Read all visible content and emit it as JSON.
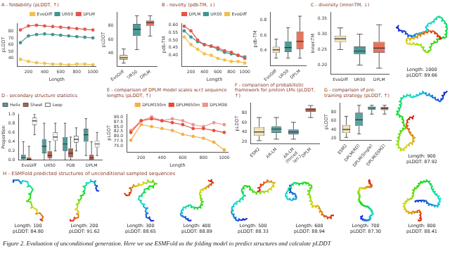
{
  "chart_data": [
    {
      "type": "line",
      "title": "A - foldability (pLDDT, ↑)",
      "xlabel": "Length",
      "ylabel": "pLDDT",
      "x": [
        100,
        200,
        300,
        400,
        500,
        600,
        700,
        800,
        900,
        1000
      ],
      "xlim": [
        60,
        1040
      ],
      "xticks": [
        200,
        400,
        600,
        800,
        1000
      ],
      "ylim": [
        28,
        92
      ],
      "yticks": [
        40,
        50,
        60,
        70,
        80
      ],
      "grid": false,
      "legend": "upper right",
      "series": [
        {
          "name": "EvoDiff",
          "color": "#f2c14e",
          "marker": "circle",
          "values": [
            38,
            35,
            33,
            32,
            31,
            31,
            30,
            31,
            31,
            30
          ]
        },
        {
          "name": "UR50",
          "color": "#3e9690",
          "marker": "circle",
          "values": [
            63,
            73,
            75,
            76,
            75,
            74,
            73,
            72,
            71,
            70
          ]
        },
        {
          "name": "DPLM",
          "color": "#e8544a",
          "marker": "circle",
          "values": [
            82,
            88,
            89,
            88,
            87,
            86,
            85,
            84,
            83,
            82
          ]
        }
      ]
    },
    {
      "type": "box",
      "ylabel": "pLDDT",
      "categories": [
        "EvoDiff",
        "UR50",
        "DPLM"
      ],
      "colors": [
        "#f3e3b8",
        "#4d9c97",
        "#e9725c"
      ],
      "boxes": [
        {
          "low": 25,
          "q1": 30,
          "median": 33,
          "q3": 37,
          "high": 46
        },
        {
          "low": 45,
          "q1": 65,
          "median": 75,
          "q3": 83,
          "high": 95
        },
        {
          "low": 65,
          "q1": 80,
          "median": 85,
          "q3": 88,
          "high": 95
        }
      ],
      "ylim": [
        20,
        100
      ],
      "yticks": [
        40,
        60,
        80
      ],
      "grid": false
    },
    {
      "type": "line",
      "title": "B - novelty (pdb-TM, ↓)",
      "xlabel": "Length",
      "ylabel": "pdb-TM",
      "x": [
        100,
        200,
        300,
        400,
        500,
        600,
        700,
        800,
        900,
        1000
      ],
      "xlim": [
        60,
        1040
      ],
      "xticks": [
        200,
        400,
        600,
        800,
        1000
      ],
      "ylim": [
        0.33,
        0.61
      ],
      "yticks": [
        {
          "value": 0.4,
          "label": "0.40"
        },
        0.45,
        {
          "value": 0.5,
          "label": "0.50"
        },
        0.55,
        {
          "value": 0.6,
          "label": "0.60"
        }
      ],
      "grid": false,
      "legend": "upper right",
      "series": [
        {
          "name": "DPLM",
          "color": "#e8544a",
          "marker": "circle",
          "values": [
            0.59,
            0.56,
            0.5,
            0.47,
            0.46,
            0.45,
            0.43,
            0.42,
            0.4,
            0.38
          ]
        },
        {
          "name": "UR50",
          "color": "#3e9690",
          "marker": "circle",
          "values": [
            0.56,
            0.52,
            0.49,
            0.47,
            0.46,
            0.44,
            0.42,
            0.41,
            0.4,
            0.39
          ]
        },
        {
          "name": "EvoDiff",
          "color": "#f2c14e",
          "marker": "circle",
          "values": [
            0.52,
            0.47,
            0.44,
            0.41,
            0.4,
            0.38,
            0.37,
            0.36,
            0.36,
            0.35
          ]
        }
      ]
    },
    {
      "type": "box",
      "ylabel": "pdb-TM",
      "categories": [
        "EvoDiff",
        "UR50",
        "DPLM"
      ],
      "colors": [
        "#f3e3b8",
        "#4d9c97",
        "#e9725c"
      ],
      "boxes": [
        {
          "low": 0.3,
          "q1": 0.37,
          "median": 0.41,
          "q3": 0.45,
          "high": 0.55
        },
        {
          "low": 0.3,
          "q1": 0.38,
          "median": 0.44,
          "q3": 0.52,
          "high": 0.7
        },
        {
          "low": 0.3,
          "q1": 0.42,
          "median": 0.52,
          "q3": 0.65,
          "high": 0.85
        }
      ],
      "ylim": [
        0.2,
        0.9
      ],
      "yticks": [
        0.4,
        0.6,
        0.8
      ],
      "grid": false
    },
    {
      "type": "box",
      "title": "C - diversity (inner-TM, ↓)",
      "ylabel": "inner-TM",
      "categories": [
        "EvoDiff",
        "UR50",
        "DPLM"
      ],
      "colors": [
        "#f3e3b8",
        "#4d9c97",
        "#e9725c"
      ],
      "boxes": [
        {
          "low": 0.25,
          "q1": 0.275,
          "median": 0.285,
          "q3": 0.295,
          "high": 0.32
        },
        {
          "low": 0.2,
          "q1": 0.235,
          "median": 0.245,
          "q3": 0.26,
          "high": 0.3
        },
        {
          "low": 0.19,
          "q1": 0.24,
          "median": 0.255,
          "q3": 0.275,
          "high": 0.33
        }
      ],
      "ylim": [
        0.17,
        0.37
      ],
      "yticks": [
        {
          "value": 0.2,
          "label": "0.20"
        },
        0.25,
        {
          "value": 0.3,
          "label": "0.30"
        },
        0.35
      ],
      "grid": false
    },
    {
      "type": "box",
      "title": "D - secondary structure statistics",
      "ylabel": "Proportion",
      "categories": [
        "EvoDiff",
        "UR50",
        "PDB",
        "DPLM"
      ],
      "legend": "upper left",
      "grid": false,
      "ylim": [
        0,
        1
      ],
      "yticks": [
        {
          "value": 0,
          "label": "0.0"
        },
        0.2,
        0.4,
        0.6,
        0.8,
        {
          "value": 1,
          "label": "1.0"
        }
      ],
      "series": [
        {
          "name": "Helix",
          "color": "#4d9c97",
          "boxes": [
            {
              "low": 0,
              "q1": 0.02,
              "median": 0.05,
              "q3": 0.12,
              "high": 0.4
            },
            {
              "low": 0,
              "q1": 0.15,
              "median": 0.3,
              "q3": 0.45,
              "high": 0.8
            },
            {
              "low": 0,
              "q1": 0.2,
              "median": 0.35,
              "q3": 0.5,
              "high": 0.8
            },
            {
              "low": 0.1,
              "q1": 0.4,
              "median": 0.55,
              "q3": 0.68,
              "high": 0.9
            }
          ]
        },
        {
          "name": "Sheet",
          "color": "#b5614f",
          "boxes": [
            {
              "low": 0,
              "q1": 0,
              "median": 0.02,
              "q3": 0.06,
              "high": 0.3
            },
            {
              "low": 0,
              "q1": 0.04,
              "median": 0.1,
              "q3": 0.2,
              "high": 0.4
            },
            {
              "low": 0,
              "q1": 0.06,
              "median": 0.15,
              "q3": 0.26,
              "high": 0.5
            },
            {
              "low": 0,
              "q1": 0.01,
              "median": 0.05,
              "q3": 0.12,
              "high": 0.4
            }
          ]
        },
        {
          "name": "Loop",
          "color": "#f4f4f4",
          "boxes": [
            {
              "low": 0.55,
              "q1": 0.76,
              "median": 0.85,
              "q3": 0.92,
              "high": 1
            },
            {
              "low": 0.2,
              "q1": 0.42,
              "median": 0.5,
              "q3": 0.6,
              "high": 0.8
            },
            {
              "low": 0.2,
              "q1": 0.38,
              "median": 0.45,
              "q3": 0.53,
              "high": 0.7
            },
            {
              "low": 0.1,
              "q1": 0.28,
              "median": 0.35,
              "q3": 0.42,
              "high": 0.6
            }
          ]
        }
      ]
    },
    {
      "type": "line",
      "title": "E - comparison of DPLM model scales w.r.t sequence lengths (pLDDT, ↑)",
      "xlabel": "Length",
      "ylabel": "pLDDT",
      "x": [
        100,
        200,
        300,
        400,
        500,
        600,
        700,
        800,
        900,
        1000
      ],
      "xlim": [
        60,
        1040
      ],
      "xticks": [
        200,
        400,
        600,
        800,
        1000
      ],
      "ylim": [
        72,
        91.5
      ],
      "yticks": [
        {
          "value": 75,
          "label": "75.0"
        },
        77.5,
        {
          "value": 80,
          "label": "80.0"
        },
        82.5,
        {
          "value": 85,
          "label": "85.0"
        },
        87.5,
        {
          "value": 90,
          "label": "90.0"
        }
      ],
      "grid": false,
      "legend": "upper right",
      "series": [
        {
          "name": "DPLM150m",
          "color": "#f5b041",
          "marker": "circle",
          "values": [
            78,
            86,
            85,
            84,
            83,
            81,
            80,
            79,
            77,
            73
          ]
        },
        {
          "name": "DPLM650m",
          "color": "#e74c3c",
          "marker": "circle",
          "values": [
            82,
            88,
            89,
            88,
            87,
            86,
            84,
            84,
            83,
            82
          ]
        },
        {
          "name": "DPLM3B",
          "color": "#f1948a",
          "marker": "circle",
          "values": [
            83,
            88,
            90,
            88,
            89,
            88,
            86,
            85,
            87,
            86
          ]
        }
      ]
    },
    {
      "type": "box",
      "title": "F - comparison of probabilistic framework for protein LMs (pLDDT, ↑)",
      "ylabel": "pLDDT",
      "categories": [
        "ESM2",
        "AR-LM",
        "AR-LM (forced len.)",
        "DPLM"
      ],
      "colors": [
        "#f3e3b8",
        "#5aa5a0",
        "#6c9fb3",
        "#e9725c"
      ],
      "boxes": [
        {
          "low": 22,
          "q1": 32,
          "median": 40,
          "q3": 50,
          "high": 70
        },
        {
          "low": 25,
          "q1": 38,
          "median": 46,
          "q3": 52,
          "high": 70
        },
        {
          "low": 25,
          "q1": 35,
          "median": 40,
          "q3": 45,
          "high": 60
        },
        {
          "low": 70,
          "q1": 82,
          "median": 86,
          "q3": 89,
          "high": 95
        }
      ],
      "ylim": [
        15,
        100
      ],
      "yticks": [
        20,
        40,
        60,
        80
      ],
      "grid": false
    },
    {
      "type": "box",
      "title": "G - comparison of pre-training strategy (pLDDT, ↑)",
      "ylabel": "pLDDT",
      "categories": [
        "ESM2",
        "DPLM(RD)",
        "DPLM(Single)",
        "DPLM(ESM2)"
      ],
      "colors": [
        "#f3e3b8",
        "#5aa5a0",
        "#58b8a8",
        "#e9725c"
      ],
      "boxes": [
        {
          "low": 22,
          "q1": 32,
          "median": 40,
          "q3": 50,
          "high": 70
        },
        {
          "low": 30,
          "q1": 48,
          "median": 62,
          "q3": 78,
          "high": 95
        },
        {
          "low": 75,
          "q1": 85,
          "median": 89,
          "q3": 92,
          "high": 95
        },
        {
          "low": 75,
          "q1": 84,
          "median": 88,
          "q3": 91,
          "high": 95
        }
      ],
      "ylim": [
        15,
        100
      ],
      "yticks": [
        20,
        40,
        60,
        80
      ],
      "grid": false
    }
  ],
  "side_structures": [
    [
      "Length: 1000",
      "pLDDT: 89.66"
    ],
    [
      "Length: 900",
      "pLDDT: 87.92"
    ]
  ],
  "panel_H": {
    "title": "H - ESMFold predicted structures of unconditional sampled sequences",
    "items": [
      [
        "Length: 100",
        "pLDDT: 84.80"
      ],
      [
        "Length: 200",
        "pLDDT: 91.62"
      ],
      [
        "Length: 300",
        "pLDDT: 88.65"
      ],
      [
        "Length: 400",
        "pLDDT: 88.89"
      ],
      [
        "Length: 500",
        "pLDDT: 88.33"
      ],
      [
        "Length: 600",
        "pLDDT: 88.94"
      ],
      [
        "Length: 700",
        "pLDDT: 87.30"
      ],
      [
        "Length: 800",
        "pLDDT: 88.41"
      ]
    ]
  },
  "caption": "Figure 2. Evaluation of unconditional generation. Here we use ESMFold as the folding model to predict structures and calculate pLDDT"
}
